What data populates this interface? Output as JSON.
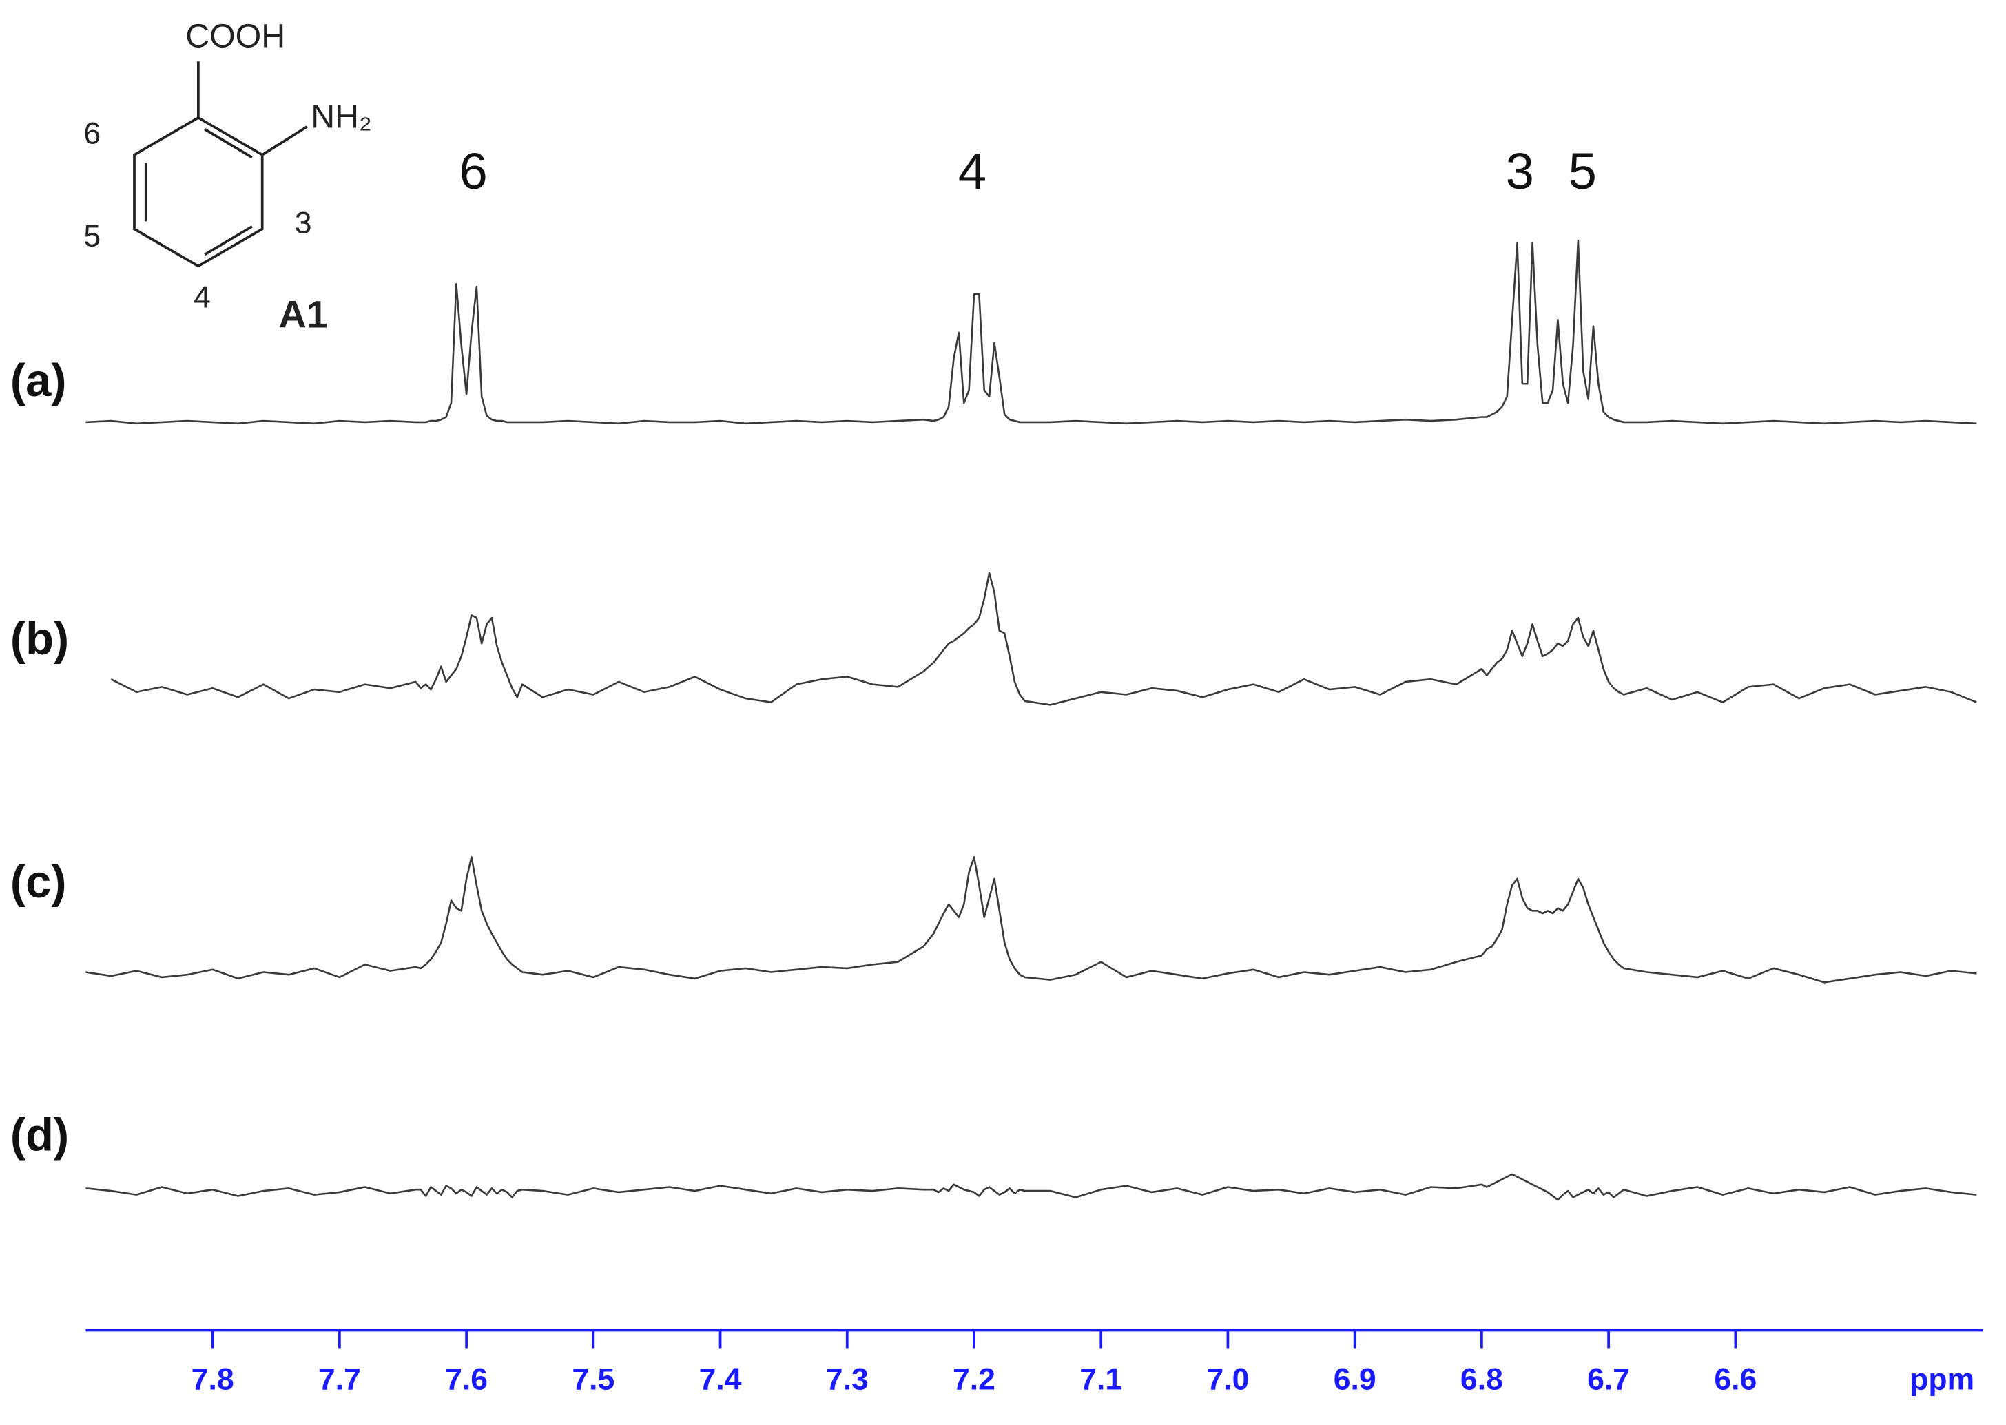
{
  "chart_data": {
    "type": "line",
    "xlabel": "ppm",
    "xlim": [
      7.9,
      6.405
    ],
    "xticks": [
      7.8,
      7.7,
      7.6,
      7.5,
      7.4,
      7.3,
      7.2,
      7.1,
      {
        "value": 7,
        "label": "7.0"
      },
      6.9,
      6.8,
      6.7,
      6.6
    ],
    "axis_color": "#1a1aff",
    "peak_labels": [
      "6",
      "4",
      "3",
      "5"
    ],
    "structure": {
      "substituents": [
        "COOH",
        "NH₂"
      ],
      "positions": [
        "6",
        "5",
        "4",
        "3"
      ],
      "name": "A1"
    },
    "x": [
      7.9,
      7.88,
      7.86,
      7.84,
      7.82,
      7.8,
      7.78,
      7.76,
      7.74,
      7.72,
      7.7,
      7.68,
      7.66,
      7.64,
      7.636,
      7.632,
      7.628,
      7.624,
      7.62,
      7.616,
      7.612,
      7.608,
      7.604,
      7.6,
      7.596,
      7.592,
      7.588,
      7.584,
      7.58,
      7.576,
      7.572,
      7.568,
      7.564,
      7.56,
      7.556,
      7.54,
      7.52,
      7.5,
      7.48,
      7.46,
      7.44,
      7.42,
      7.4,
      7.38,
      7.36,
      7.34,
      7.32,
      7.3,
      7.28,
      7.26,
      7.24,
      7.232,
      7.228,
      7.224,
      7.22,
      7.216,
      7.212,
      7.208,
      7.204,
      7.2,
      7.196,
      7.192,
      7.188,
      7.184,
      7.18,
      7.176,
      7.172,
      7.168,
      7.164,
      7.16,
      7.14,
      7.12,
      7.1,
      7.08,
      7.06,
      7.04,
      7.02,
      7,
      6.98,
      6.96,
      6.94,
      6.92,
      6.9,
      6.88,
      6.86,
      6.84,
      6.82,
      6.8,
      6.796,
      6.792,
      6.788,
      6.784,
      6.78,
      6.776,
      6.772,
      6.768,
      6.764,
      6.76,
      6.756,
      6.752,
      6.748,
      6.744,
      6.74,
      6.736,
      6.732,
      6.728,
      6.724,
      6.72,
      6.716,
      6.712,
      6.708,
      6.704,
      6.7,
      6.696,
      6.692,
      6.688,
      6.67,
      6.65,
      6.63,
      6.61,
      6.59,
      6.57,
      6.55,
      6.53,
      6.51,
      6.49,
      6.47,
      6.45,
      6.43,
      6.41
    ],
    "series": [
      {
        "name": "(a)",
        "color": "#3a3a3a",
        "values": [
          0,
          1,
          -1,
          0,
          1,
          0,
          -1,
          1,
          0,
          -1,
          1,
          0,
          1,
          0,
          0,
          0,
          1,
          1,
          2,
          4,
          15,
          108,
          60,
          22,
          70,
          106,
          20,
          5,
          2,
          1,
          1,
          0,
          0,
          0,
          0,
          0,
          1,
          0,
          -1,
          1,
          0,
          0,
          1,
          -1,
          0,
          1,
          0,
          1,
          0,
          1,
          2,
          1,
          2,
          4,
          12,
          50,
          70,
          15,
          25,
          100,
          100,
          25,
          20,
          62,
          35,
          6,
          2,
          1,
          0,
          0,
          0,
          1,
          0,
          -1,
          0,
          1,
          0,
          1,
          0,
          1,
          0,
          1,
          0,
          1,
          2,
          1,
          2,
          4,
          4,
          6,
          8,
          12,
          20,
          80,
          140,
          30,
          30,
          140,
          60,
          15,
          15,
          25,
          80,
          30,
          15,
          60,
          142,
          40,
          18,
          75,
          30,
          8,
          4,
          2,
          1,
          0,
          0,
          1,
          0,
          -1,
          0,
          1,
          0,
          -1,
          0,
          1,
          0,
          1,
          0,
          -1
        ]
      },
      {
        "name": "(b)",
        "color": "#3a3a3a",
        "values": [
          null,
          12,
          2,
          6,
          0,
          5,
          -2,
          8,
          -3,
          4,
          2,
          8,
          5,
          10,
          5,
          8,
          4,
          12,
          22,
          10,
          15,
          20,
          30,
          45,
          62,
          60,
          40,
          55,
          60,
          38,
          25,
          15,
          5,
          -2,
          8,
          -2,
          4,
          0,
          10,
          2,
          6,
          14,
          4,
          -3,
          -6,
          8,
          12,
          14,
          8,
          6,
          18,
          25,
          30,
          35,
          40,
          42,
          45,
          48,
          52,
          55,
          60,
          75,
          95,
          80,
          50,
          48,
          30,
          10,
          0,
          -5,
          -8,
          -3,
          2,
          0,
          5,
          3,
          -2,
          4,
          8,
          2,
          12,
          4,
          6,
          0,
          10,
          12,
          8,
          20,
          15,
          20,
          25,
          28,
          35,
          50,
          40,
          30,
          40,
          55,
          42,
          30,
          32,
          35,
          40,
          38,
          42,
          55,
          60,
          45,
          38,
          50,
          35,
          20,
          10,
          5,
          2,
          0,
          5,
          -4,
          2,
          -6,
          6,
          8,
          -3,
          5,
          8,
          0,
          3,
          6,
          2,
          -6
        ]
      },
      {
        "name": "(c)",
        "color": "#3a3a3a",
        "values": [
          2,
          -1,
          3,
          -2,
          0,
          4,
          -3,
          2,
          0,
          5,
          -2,
          8,
          3,
          6,
          5,
          8,
          12,
          18,
          25,
          40,
          58,
          52,
          50,
          75,
          92,
          70,
          50,
          40,
          32,
          25,
          18,
          12,
          8,
          5,
          2,
          0,
          3,
          -2,
          6,
          4,
          0,
          -3,
          3,
          5,
          2,
          4,
          6,
          5,
          8,
          10,
          22,
          32,
          40,
          48,
          55,
          50,
          45,
          55,
          80,
          92,
          70,
          45,
          60,
          75,
          50,
          25,
          12,
          5,
          0,
          -2,
          -4,
          0,
          10,
          -2,
          3,
          0,
          -3,
          1,
          4,
          -2,
          2,
          0,
          3,
          6,
          2,
          4,
          10,
          15,
          20,
          22,
          28,
          35,
          55,
          70,
          75,
          60,
          52,
          50,
          50,
          48,
          50,
          48,
          52,
          50,
          55,
          65,
          75,
          68,
          55,
          45,
          35,
          25,
          18,
          12,
          8,
          5,
          2,
          0,
          -2,
          3,
          -3,
          5,
          0,
          -6,
          -3,
          0,
          2,
          -1,
          3,
          1
        ]
      },
      {
        "name": "(d)",
        "color": "#3a3a3a",
        "values": [
          3,
          1,
          -2,
          4,
          -1,
          2,
          -3,
          1,
          3,
          -2,
          0,
          4,
          -1,
          2,
          2,
          -3,
          4,
          1,
          -2,
          5,
          3,
          -1,
          2,
          0,
          -3,
          4,
          1,
          -2,
          3,
          -1,
          2,
          0,
          -4,
          1,
          2,
          1,
          -2,
          3,
          0,
          2,
          4,
          1,
          5,
          2,
          -1,
          3,
          0,
          2,
          1,
          3,
          2,
          2,
          0,
          3,
          1,
          6,
          4,
          2,
          1,
          0,
          -3,
          2,
          4,
          1,
          -2,
          0,
          3,
          -1,
          2,
          1,
          1,
          -4,
          2,
          5,
          0,
          3,
          -2,
          4,
          1,
          2,
          -1,
          3,
          0,
          2,
          -2,
          4,
          3,
          6,
          4,
          6,
          8,
          10,
          12,
          14,
          12,
          10,
          8,
          6,
          4,
          2,
          0,
          -3,
          -6,
          -2,
          1,
          -4,
          -2,
          0,
          2,
          -1,
          3,
          -2,
          0,
          -4,
          -1,
          2,
          -3,
          1,
          4,
          -2,
          3,
          -1,
          2,
          0,
          4,
          -2,
          1,
          3,
          0,
          -2
        ]
      }
    ]
  }
}
